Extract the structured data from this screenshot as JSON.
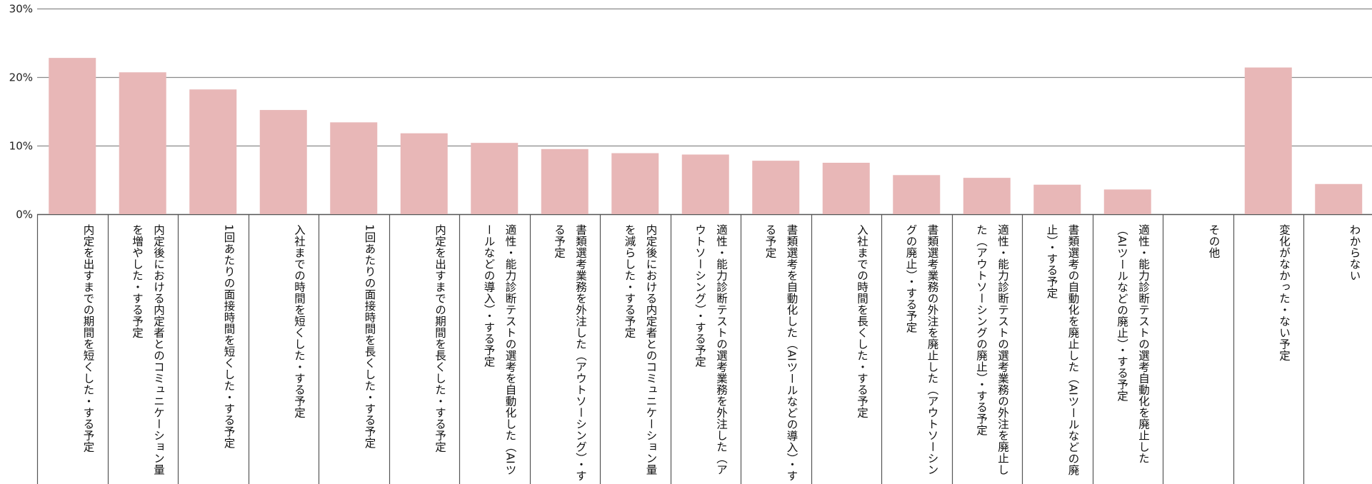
{
  "chart_data": {
    "type": "bar",
    "title": "",
    "xlabel": "",
    "ylabel": "",
    "ylim": [
      0,
      30
    ],
    "y_ticks": [
      {
        "value": 0,
        "label": "0%"
      },
      {
        "value": 10,
        "label": "10%"
      },
      {
        "value": 20,
        "label": "20%"
      },
      {
        "value": 30,
        "label": "30%"
      }
    ],
    "grid": true,
    "bar_color": "#e8b7b7",
    "categories": [
      "内定を出すまでの期間を短くした・する予定",
      "内定後における内定者とのコミュニケーション量を増やした・する予定",
      "1回あたりの面接時間を短くした・する予定",
      "入社までの時間を短くした・する予定",
      "1回あたりの面接時間を長くした・する予定",
      "内定を出すまでの期間を長くした・する予定",
      "適性・能力診断テストの選考を自動化した（AIツールなどの導入）・する予定",
      "書類選考業務を外注した（アウトソーシング）・する予定",
      "内定後における内定者とのコミュニケーション量を減らした・する予定",
      "適性・能力診断テストの選考業務を外注した（アウトソーシング）・する予定",
      "書類選考を自動化した（AIツールなどの導入）・する予定",
      "入社までの時間を長くした・する予定",
      "書類選考業務の外注を廃止した（アウトソーシングの廃止）・する予定",
      "適性・能力診断テストの選考業務の外注を廃止した（アウトソーシングの廃止）・する予定",
      "書類選考の自動化を廃止した（AIツールなどの廃止）・する予定",
      "適性・能力診断テストの選考自動化を廃止した（AIツールなどの廃止）・する予定",
      "その他",
      "変化がなかった・ない予定",
      "わからない"
    ],
    "values": [
      22.8,
      20.7,
      18.2,
      15.2,
      13.4,
      11.8,
      10.4,
      9.5,
      8.9,
      8.7,
      7.8,
      7.5,
      5.7,
      5.3,
      4.3,
      3.6,
      0,
      21.4,
      4.4
    ]
  }
}
